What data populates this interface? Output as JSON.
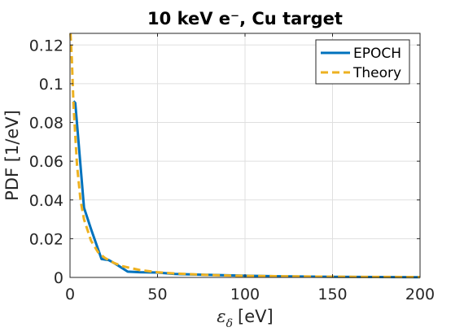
{
  "chart_data": {
    "type": "line",
    "title": "10 keV e⁻, Cu target",
    "xlabel": "[eV]",
    "xlabel_symbol": "ε",
    "xlabel_subscript": "δ",
    "ylabel": "PDF [1/eV]",
    "xlim": [
      0,
      200
    ],
    "ylim": [
      0,
      0.126
    ],
    "xticks": [
      0,
      50,
      100,
      150,
      200
    ],
    "xtick_labels": [
      "0",
      "50",
      "100",
      "150",
      "200"
    ],
    "yticks": [
      0,
      0.02,
      0.04,
      0.06,
      0.08,
      0.1,
      0.12
    ],
    "ytick_labels": [
      "0",
      "0.02",
      "0.04",
      "0.06",
      "0.08",
      "0.1",
      "0.12"
    ],
    "grid": true,
    "legend_position": "top-right",
    "series": [
      {
        "name": "EPOCH",
        "color": "#0072BD",
        "style": "solid",
        "x": [
          2,
          3,
          8,
          12,
          18,
          22,
          26,
          33,
          40,
          50,
          60,
          70,
          80,
          100,
          120,
          150,
          175,
          200
        ],
        "y": [
          0.091,
          0.09,
          0.036,
          0.025,
          0.0095,
          0.009,
          0.007,
          0.003,
          0.0027,
          0.0025,
          0.0018,
          0.0015,
          0.0013,
          0.0009,
          0.0006,
          0.0003,
          0.0002,
          0.0001
        ]
      },
      {
        "name": "Theory",
        "color": "#EDB120",
        "style": "dashed",
        "x": [
          0.3,
          1,
          2,
          4,
          6,
          8,
          12,
          16,
          20,
          25,
          30,
          40,
          50,
          60,
          80,
          100,
          130,
          160,
          200
        ],
        "y": [
          0.126,
          0.113,
          0.089,
          0.058,
          0.04,
          0.03,
          0.019,
          0.013,
          0.01,
          0.0075,
          0.0058,
          0.0038,
          0.0027,
          0.002,
          0.0012,
          0.0008,
          0.0005,
          0.0003,
          0.0002
        ]
      }
    ]
  }
}
